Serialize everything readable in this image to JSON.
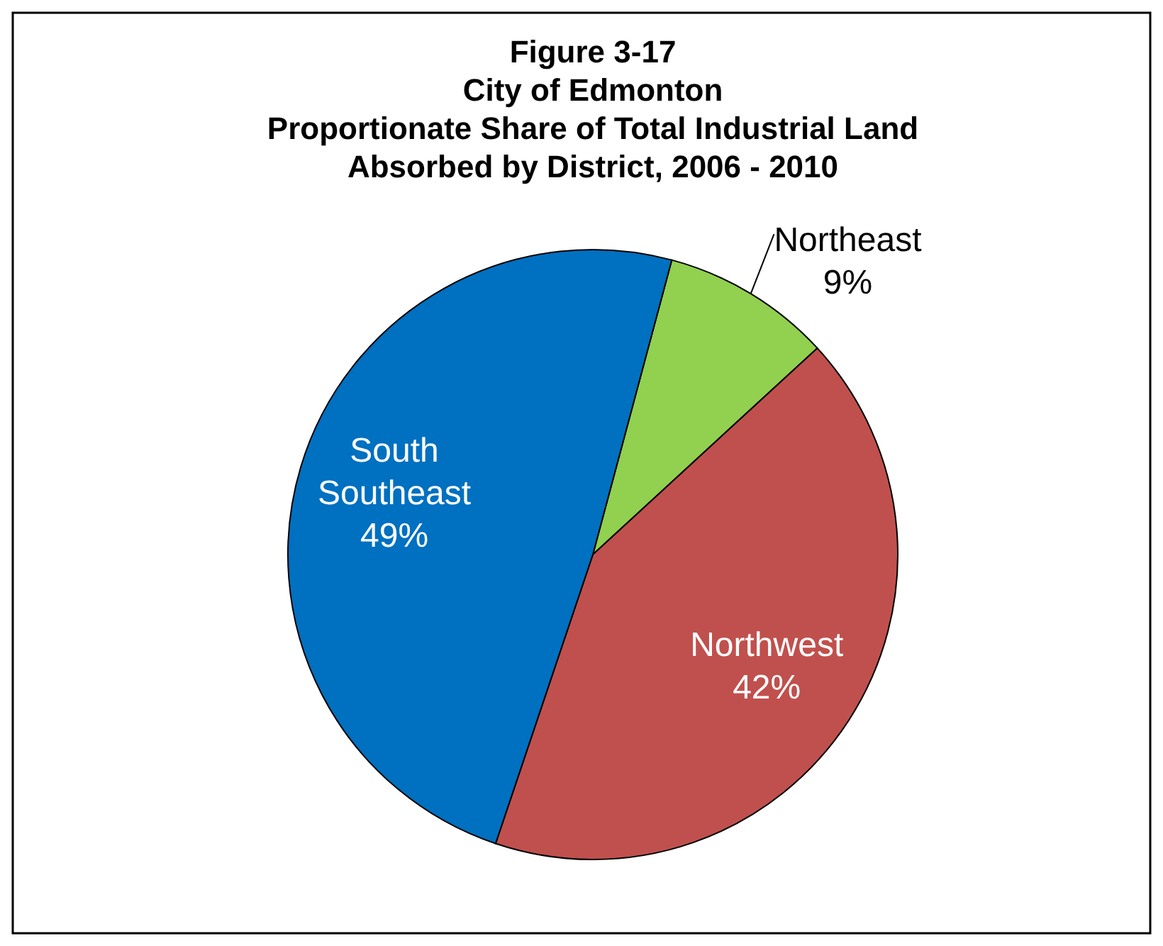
{
  "chart_data": {
    "type": "pie",
    "title": "Figure 3-17\nCity of Edmonton\nProportionate Share of Total Industrial Land\nAbsorbed by District, 2006 - 2010",
    "categories": [
      "Northeast",
      "Northwest",
      "South Southeast"
    ],
    "values": [
      9,
      42,
      49
    ],
    "colors": [
      "#92d050",
      "#c0504d",
      "#0070c0"
    ],
    "value_labels": [
      "9%",
      "42%",
      "49%"
    ]
  }
}
